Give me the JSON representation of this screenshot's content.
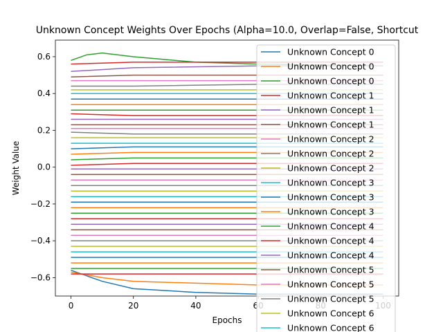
{
  "chart_data": {
    "type": "line",
    "title": "Unknown Concept Weights Over Epochs (Alpha=10.0, Overlap=False, Shortcut",
    "xlabel": "Epochs",
    "ylabel": "Weight Value",
    "xlim": [
      -5,
      105
    ],
    "ylim": [
      -0.7,
      0.69
    ],
    "xticks": [
      0,
      20,
      40,
      60,
      80,
      100
    ],
    "yticks": [
      -0.6,
      -0.4,
      -0.2,
      0.0,
      0.2,
      0.4,
      0.6
    ],
    "ytick_labels": [
      "−0.6",
      "−0.4",
      "−0.2",
      "0.0",
      "0.2",
      "0.4",
      "0.6"
    ],
    "grid": false,
    "legend": {
      "placement": "upper-right",
      "entries": [
        {
          "label": "Unknown Concept 0",
          "color": "#1f77b4"
        },
        {
          "label": "Unknown Concept 0",
          "color": "#ff7f0e"
        },
        {
          "label": "Unknown Concept 0",
          "color": "#2ca02c"
        },
        {
          "label": "Unknown Concept 1",
          "color": "#d62728"
        },
        {
          "label": "Unknown Concept 1",
          "color": "#9467bd"
        },
        {
          "label": "Unknown Concept 1",
          "color": "#8c564b"
        },
        {
          "label": "Unknown Concept 2",
          "color": "#e377c2"
        },
        {
          "label": "Unknown Concept 2",
          "color": "#7f7f7f"
        },
        {
          "label": "Unknown Concept 2",
          "color": "#bcbd22"
        },
        {
          "label": "Unknown Concept 3",
          "color": "#17becf"
        },
        {
          "label": "Unknown Concept 3",
          "color": "#1f77b4"
        },
        {
          "label": "Unknown Concept 3",
          "color": "#ff7f0e"
        },
        {
          "label": "Unknown Concept 4",
          "color": "#2ca02c"
        },
        {
          "label": "Unknown Concept 4",
          "color": "#d62728"
        },
        {
          "label": "Unknown Concept 4",
          "color": "#9467bd"
        },
        {
          "label": "Unknown Concept 5",
          "color": "#8c564b"
        },
        {
          "label": "Unknown Concept 5",
          "color": "#e377c2"
        },
        {
          "label": "Unknown Concept 5",
          "color": "#7f7f7f"
        },
        {
          "label": "Unknown Concept 6",
          "color": "#bcbd22"
        },
        {
          "label": "Unknown Concept 6",
          "color": "#17becf"
        }
      ]
    },
    "colors": [
      "#1f77b4",
      "#ff7f0e",
      "#2ca02c",
      "#d62728",
      "#9467bd",
      "#8c564b",
      "#e377c2",
      "#7f7f7f",
      "#bcbd22",
      "#17becf"
    ],
    "series": [
      {
        "values": [
          [
            0,
            -0.56
          ],
          [
            10,
            -0.62
          ],
          [
            20,
            -0.66
          ],
          [
            40,
            -0.68
          ],
          [
            60,
            -0.69
          ],
          [
            80,
            -0.69
          ],
          [
            100,
            -0.69
          ]
        ]
      },
      {
        "values": [
          [
            0,
            -0.57
          ],
          [
            10,
            -0.6
          ],
          [
            20,
            -0.62
          ],
          [
            40,
            -0.63
          ],
          [
            60,
            -0.64
          ],
          [
            80,
            -0.64
          ],
          [
            100,
            -0.64
          ]
        ]
      },
      {
        "values": [
          [
            0,
            0.58
          ],
          [
            5,
            0.61
          ],
          [
            10,
            0.62
          ],
          [
            20,
            0.6
          ],
          [
            40,
            0.57
          ],
          [
            60,
            0.56
          ],
          [
            100,
            0.55
          ]
        ]
      },
      {
        "values": [
          [
            0,
            0.56
          ],
          [
            20,
            0.57
          ],
          [
            40,
            0.57
          ],
          [
            60,
            0.57
          ],
          [
            100,
            0.57
          ]
        ]
      },
      {
        "values": [
          [
            0,
            0.52
          ],
          [
            20,
            0.54
          ],
          [
            60,
            0.55
          ],
          [
            100,
            0.55
          ]
        ]
      },
      {
        "values": [
          [
            0,
            0.49
          ],
          [
            20,
            0.5
          ],
          [
            60,
            0.5
          ],
          [
            100,
            0.5
          ]
        ]
      },
      {
        "values": [
          [
            0,
            0.47
          ],
          [
            20,
            0.47
          ],
          [
            60,
            0.47
          ],
          [
            100,
            0.47
          ]
        ]
      },
      {
        "values": [
          [
            0,
            0.44
          ],
          [
            20,
            0.44
          ],
          [
            60,
            0.45
          ],
          [
            100,
            0.45
          ]
        ]
      },
      {
        "values": [
          [
            0,
            0.42
          ],
          [
            20,
            0.42
          ],
          [
            60,
            0.42
          ],
          [
            100,
            0.42
          ]
        ]
      },
      {
        "values": [
          [
            0,
            0.4
          ],
          [
            20,
            0.4
          ],
          [
            60,
            0.4
          ],
          [
            100,
            0.4
          ]
        ]
      },
      {
        "values": [
          [
            0,
            0.37
          ],
          [
            20,
            0.37
          ],
          [
            60,
            0.37
          ],
          [
            100,
            0.37
          ]
        ]
      },
      {
        "values": [
          [
            0,
            0.34
          ],
          [
            20,
            0.34
          ],
          [
            60,
            0.34
          ],
          [
            100,
            0.34
          ]
        ]
      },
      {
        "values": [
          [
            0,
            0.31
          ],
          [
            20,
            0.31
          ],
          [
            60,
            0.31
          ],
          [
            100,
            0.31
          ]
        ]
      },
      {
        "values": [
          [
            0,
            0.29
          ],
          [
            20,
            0.28
          ],
          [
            60,
            0.28
          ],
          [
            100,
            0.28
          ]
        ]
      },
      {
        "values": [
          [
            0,
            0.26
          ],
          [
            20,
            0.26
          ],
          [
            60,
            0.26
          ],
          [
            100,
            0.26
          ]
        ]
      },
      {
        "values": [
          [
            0,
            0.23
          ],
          [
            20,
            0.23
          ],
          [
            60,
            0.23
          ],
          [
            100,
            0.23
          ]
        ]
      },
      {
        "values": [
          [
            0,
            0.21
          ],
          [
            20,
            0.21
          ],
          [
            60,
            0.21
          ],
          [
            100,
            0.21
          ]
        ]
      },
      {
        "values": [
          [
            0,
            0.19
          ],
          [
            20,
            0.18
          ],
          [
            60,
            0.18
          ],
          [
            100,
            0.18
          ]
        ]
      },
      {
        "values": [
          [
            0,
            0.16
          ],
          [
            20,
            0.16
          ],
          [
            60,
            0.16
          ],
          [
            100,
            0.16
          ]
        ]
      },
      {
        "values": [
          [
            0,
            0.13
          ],
          [
            20,
            0.13
          ],
          [
            60,
            0.13
          ],
          [
            100,
            0.13
          ]
        ]
      },
      {
        "values": [
          [
            0,
            0.1
          ],
          [
            20,
            0.11
          ],
          [
            60,
            0.11
          ],
          [
            100,
            0.11
          ]
        ]
      },
      {
        "values": [
          [
            0,
            0.07
          ],
          [
            20,
            0.08
          ],
          [
            60,
            0.08
          ],
          [
            100,
            0.08
          ]
        ]
      },
      {
        "values": [
          [
            0,
            0.04
          ],
          [
            20,
            0.05
          ],
          [
            60,
            0.05
          ],
          [
            100,
            0.05
          ]
        ]
      },
      {
        "values": [
          [
            0,
            0.01
          ],
          [
            20,
            0.02
          ],
          [
            60,
            0.02
          ],
          [
            100,
            0.02
          ]
        ]
      },
      {
        "values": [
          [
            0,
            -0.01
          ],
          [
            20,
            -0.01
          ],
          [
            60,
            -0.01
          ],
          [
            100,
            -0.01
          ]
        ]
      },
      {
        "values": [
          [
            0,
            -0.04
          ],
          [
            20,
            -0.04
          ],
          [
            60,
            -0.04
          ],
          [
            100,
            -0.04
          ]
        ]
      },
      {
        "values": [
          [
            0,
            -0.07
          ],
          [
            20,
            -0.07
          ],
          [
            60,
            -0.07
          ],
          [
            100,
            -0.07
          ]
        ]
      },
      {
        "values": [
          [
            0,
            -0.1
          ],
          [
            20,
            -0.1
          ],
          [
            60,
            -0.1
          ],
          [
            100,
            -0.1
          ]
        ]
      },
      {
        "values": [
          [
            0,
            -0.13
          ],
          [
            20,
            -0.13
          ],
          [
            60,
            -0.13
          ],
          [
            100,
            -0.13
          ]
        ]
      },
      {
        "values": [
          [
            0,
            -0.16
          ],
          [
            20,
            -0.16
          ],
          [
            60,
            -0.16
          ],
          [
            100,
            -0.16
          ]
        ]
      },
      {
        "values": [
          [
            0,
            -0.19
          ],
          [
            20,
            -0.19
          ],
          [
            60,
            -0.19
          ],
          [
            100,
            -0.19
          ]
        ]
      },
      {
        "values": [
          [
            0,
            -0.22
          ],
          [
            20,
            -0.22
          ],
          [
            60,
            -0.22
          ],
          [
            100,
            -0.22
          ]
        ]
      },
      {
        "values": [
          [
            0,
            -0.25
          ],
          [
            20,
            -0.25
          ],
          [
            60,
            -0.25
          ],
          [
            100,
            -0.25
          ]
        ]
      },
      {
        "values": [
          [
            0,
            -0.28
          ],
          [
            20,
            -0.28
          ],
          [
            60,
            -0.28
          ],
          [
            100,
            -0.28
          ]
        ]
      },
      {
        "values": [
          [
            0,
            -0.31
          ],
          [
            20,
            -0.31
          ],
          [
            60,
            -0.31
          ],
          [
            100,
            -0.31
          ]
        ]
      },
      {
        "values": [
          [
            0,
            -0.34
          ],
          [
            20,
            -0.34
          ],
          [
            60,
            -0.34
          ],
          [
            100,
            -0.34
          ]
        ]
      },
      {
        "values": [
          [
            0,
            -0.37
          ],
          [
            20,
            -0.37
          ],
          [
            60,
            -0.37
          ],
          [
            100,
            -0.37
          ]
        ]
      },
      {
        "values": [
          [
            0,
            -0.4
          ],
          [
            20,
            -0.4
          ],
          [
            60,
            -0.4
          ],
          [
            100,
            -0.4
          ]
        ]
      },
      {
        "values": [
          [
            0,
            -0.43
          ],
          [
            20,
            -0.43
          ],
          [
            60,
            -0.43
          ],
          [
            100,
            -0.43
          ]
        ]
      },
      {
        "values": [
          [
            0,
            -0.46
          ],
          [
            20,
            -0.46
          ],
          [
            60,
            -0.46
          ],
          [
            100,
            -0.46
          ]
        ]
      },
      {
        "values": [
          [
            0,
            -0.49
          ],
          [
            20,
            -0.49
          ],
          [
            60,
            -0.49
          ],
          [
            100,
            -0.49
          ]
        ]
      },
      {
        "values": [
          [
            0,
            -0.52
          ],
          [
            20,
            -0.52
          ],
          [
            60,
            -0.52
          ],
          [
            100,
            -0.52
          ]
        ]
      },
      {
        "values": [
          [
            0,
            -0.55
          ],
          [
            20,
            -0.55
          ],
          [
            60,
            -0.55
          ],
          [
            100,
            -0.55
          ]
        ]
      },
      {
        "values": [
          [
            0,
            -0.58
          ],
          [
            20,
            -0.58
          ],
          [
            60,
            -0.58
          ],
          [
            100,
            -0.58
          ]
        ]
      }
    ]
  }
}
